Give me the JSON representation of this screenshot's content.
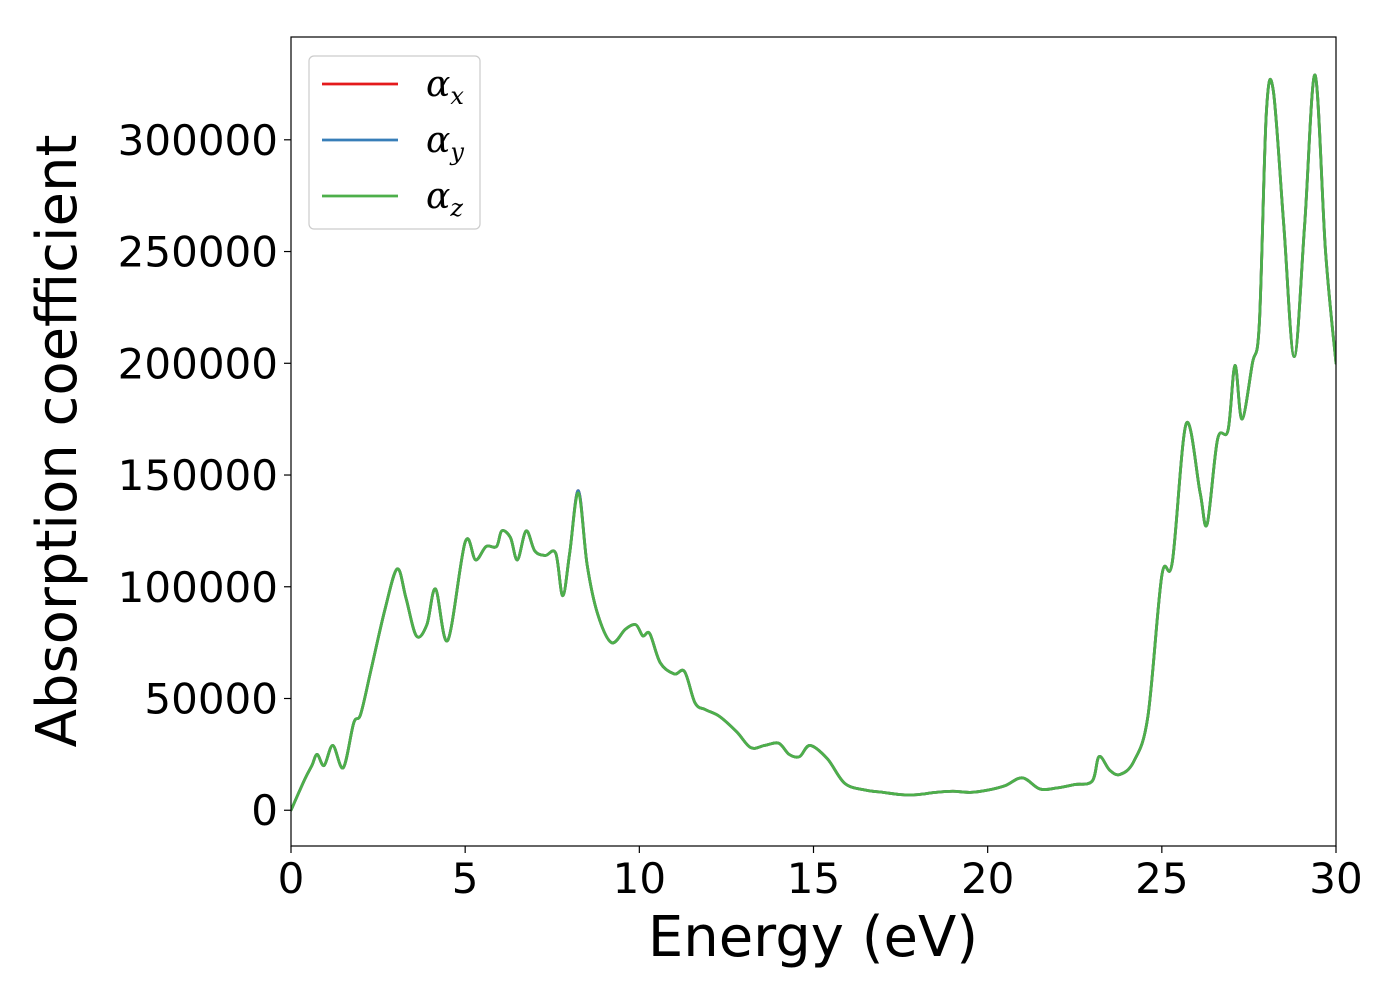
{
  "chart_data": {
    "type": "line",
    "title": "",
    "xlabel": "Energy (eV)",
    "ylabel": "Absorption coefficient",
    "xlim": [
      0,
      30
    ],
    "ylim": [
      -16000,
      346000
    ],
    "xticks": [
      0,
      5,
      10,
      15,
      20,
      25,
      30
    ],
    "xtick_labels": [
      "0",
      "5",
      "10",
      "15",
      "20",
      "25",
      "30"
    ],
    "yticks": [
      0,
      50000,
      100000,
      150000,
      200000,
      250000,
      300000
    ],
    "ytick_labels": [
      "0",
      "50000",
      "100000",
      "150000",
      "200000",
      "250000",
      "300000"
    ],
    "grid": false,
    "legend_position": "top-left",
    "colors": {
      "alpha_x": "#e41a1c",
      "alpha_y": "#377eb8",
      "alpha_z": "#4daf4a"
    },
    "legend": [
      {
        "key": "alpha_x",
        "symbol": "α",
        "subscript": "x"
      },
      {
        "key": "alpha_y",
        "symbol": "α",
        "subscript": "y"
      },
      {
        "key": "alpha_z",
        "symbol": "α",
        "subscript": "z"
      }
    ],
    "x": [
      0,
      0.4,
      0.6,
      0.75,
      0.95,
      1.2,
      1.5,
      1.8,
      2.0,
      2.3,
      2.7,
      3.05,
      3.3,
      3.6,
      3.9,
      4.15,
      4.5,
      5.0,
      5.3,
      5.6,
      5.9,
      6.05,
      6.3,
      6.5,
      6.75,
      7.0,
      7.3,
      7.6,
      7.8,
      8.0,
      8.25,
      8.5,
      8.8,
      9.2,
      9.6,
      9.9,
      10.1,
      10.3,
      10.6,
      11.0,
      11.3,
      11.6,
      11.9,
      12.3,
      12.8,
      13.2,
      13.6,
      14.0,
      14.3,
      14.6,
      14.9,
      15.4,
      15.9,
      16.5,
      17.0,
      17.5,
      18.0,
      18.5,
      19.0,
      19.5,
      20.0,
      20.5,
      21.0,
      21.5,
      22.0,
      22.5,
      23.0,
      23.2,
      23.5,
      23.8,
      24.2,
      24.6,
      25.0,
      25.3,
      25.7,
      26.1,
      26.3,
      26.6,
      26.9,
      27.1,
      27.3,
      27.6,
      27.8,
      28.0,
      28.2,
      28.5,
      28.8,
      29.1,
      29.4,
      29.7,
      30.0
    ],
    "series": [
      {
        "key": "alpha_x",
        "values": [
          0,
          14000,
          20000,
          25000,
          20000,
          29000,
          19000,
          39000,
          43000,
          63000,
          90000,
          108000,
          95000,
          78000,
          83000,
          99000,
          76000,
          120000,
          112000,
          118000,
          118000,
          125000,
          122000,
          112000,
          125000,
          116000,
          114000,
          115000,
          96000,
          115000,
          143000,
          110000,
          88000,
          75000,
          81000,
          83000,
          78000,
          79000,
          66000,
          61000,
          62000,
          48000,
          45000,
          42000,
          35000,
          28000,
          29000,
          30000,
          25000,
          24000,
          29000,
          23000,
          12000,
          9000,
          8000,
          7000,
          7000,
          8000,
          8500,
          8000,
          9000,
          11000,
          14500,
          9500,
          10000,
          11500,
          13000,
          24000,
          18000,
          16000,
          22000,
          42000,
          105000,
          111000,
          173000,
          142000,
          128000,
          166000,
          170000,
          199000,
          175000,
          200000,
          218000,
          312000,
          322000,
          262000,
          203000,
          262000,
          329000,
          250000,
          200000
        ]
      },
      {
        "key": "alpha_y",
        "values": [
          0,
          14000,
          20000,
          25000,
          20000,
          29000,
          19000,
          39000,
          43000,
          63000,
          90000,
          108000,
          95000,
          78000,
          83000,
          99000,
          76000,
          120000,
          112000,
          118000,
          118000,
          125000,
          122000,
          112000,
          125000,
          116000,
          114000,
          115000,
          96000,
          115000,
          143000,
          110000,
          88000,
          75000,
          81000,
          83000,
          78000,
          79000,
          66000,
          61000,
          62000,
          48000,
          45000,
          42000,
          35000,
          28000,
          29000,
          30000,
          25000,
          24000,
          29000,
          23000,
          12000,
          9000,
          8000,
          7000,
          7000,
          8000,
          8500,
          8000,
          9000,
          11000,
          14500,
          9500,
          10000,
          11500,
          13000,
          24000,
          18000,
          16000,
          22000,
          42000,
          105000,
          111000,
          173000,
          142000,
          128000,
          166000,
          170000,
          199000,
          175000,
          200000,
          218000,
          312000,
          322000,
          262000,
          203000,
          262000,
          329000,
          250000,
          200000
        ]
      },
      {
        "key": "alpha_z",
        "values": [
          0,
          14000,
          20000,
          25000,
          20000,
          29000,
          19000,
          39000,
          43000,
          63000,
          90000,
          108000,
          95000,
          78000,
          83000,
          99000,
          76000,
          120000,
          112000,
          118000,
          118000,
          125000,
          122000,
          112000,
          125000,
          116000,
          114000,
          115000,
          96000,
          115000,
          142000,
          110000,
          88000,
          75000,
          81000,
          83000,
          78000,
          79000,
          66000,
          61000,
          62000,
          48000,
          45000,
          42000,
          35000,
          28000,
          29000,
          30000,
          25000,
          24000,
          29000,
          23000,
          12000,
          9000,
          8000,
          7000,
          7000,
          8000,
          8500,
          8000,
          9000,
          11000,
          14500,
          9500,
          10000,
          11500,
          13000,
          24000,
          18000,
          16000,
          22000,
          42000,
          105000,
          111000,
          173000,
          142000,
          128000,
          166000,
          170000,
          199000,
          175000,
          200000,
          218000,
          312000,
          322000,
          262000,
          203000,
          262000,
          329000,
          250000,
          200000
        ]
      }
    ]
  }
}
